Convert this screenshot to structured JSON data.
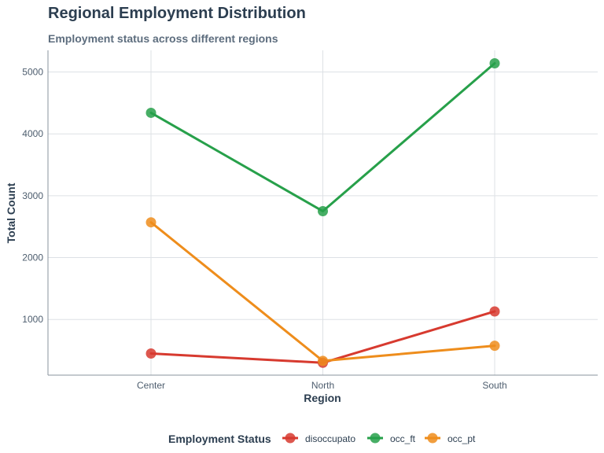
{
  "chart_data": {
    "type": "line",
    "title": "Regional Employment Distribution",
    "subtitle": "Employment status across different regions",
    "xlabel": "Region",
    "ylabel": "Total Count",
    "categories": [
      "Center",
      "North",
      "South"
    ],
    "ylim": [
      100,
      5350
    ],
    "yticks": [
      1000,
      2000,
      3000,
      4000,
      5000
    ],
    "grid": true,
    "legend_position": "bottom",
    "legend_title": "Employment Status",
    "series": [
      {
        "name": "disoccupato",
        "color": "#d73a2f",
        "values": [
          450,
          300,
          1130
        ]
      },
      {
        "name": "occ_ft",
        "color": "#27a04a",
        "values": [
          4340,
          2750,
          5140
        ]
      },
      {
        "name": "occ_pt",
        "color": "#ee8d1c",
        "values": [
          2570,
          330,
          575
        ]
      }
    ]
  }
}
